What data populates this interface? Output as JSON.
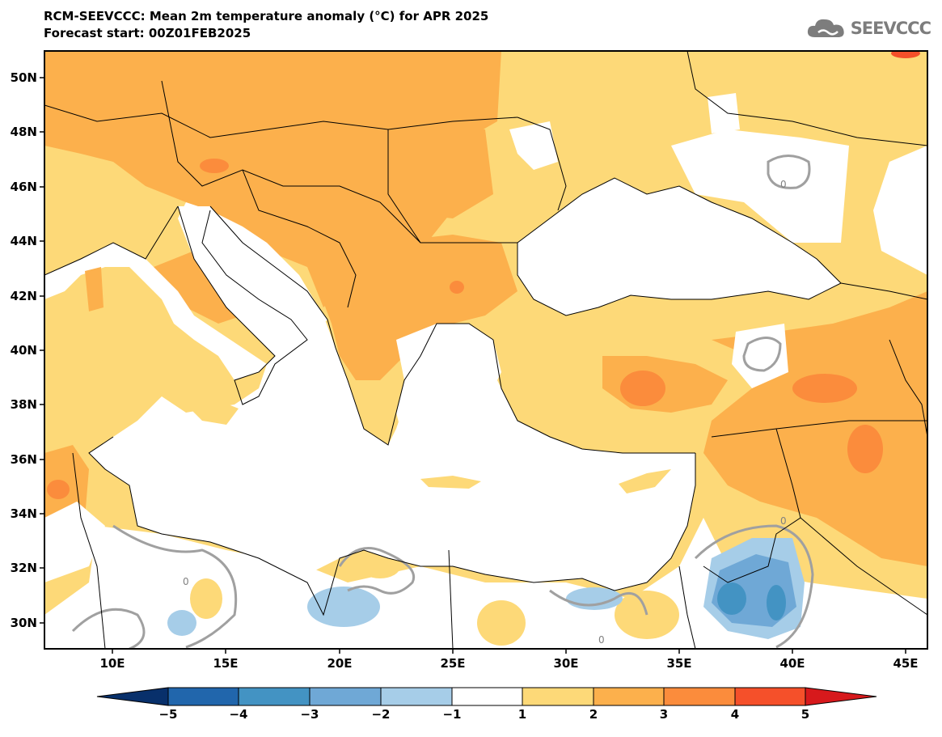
{
  "header": {
    "title": "RCM-SEEVCCC: Mean 2m temperature anomaly (°C) for APR 2025",
    "subtitle": "Forecast start: 00Z01FEB2025"
  },
  "logo": {
    "text": "SEEVCCC",
    "icon": "cloud-icon",
    "color": "#7d7d7d"
  },
  "map": {
    "lon_range": [
      7,
      46
    ],
    "lat_range": [
      29,
      51
    ],
    "lon_ticks": [
      "10E",
      "15E",
      "20E",
      "25E",
      "30E",
      "35E",
      "40E",
      "45E"
    ],
    "lat_ticks": [
      "50N",
      "48N",
      "46N",
      "44N",
      "42N",
      "40N",
      "38N",
      "36N",
      "34N",
      "32N",
      "30N"
    ],
    "contour_label": "0"
  },
  "colorbar": {
    "labels": [
      "−5",
      "−4",
      "−3",
      "−2",
      "−1",
      "1",
      "2",
      "3",
      "4",
      "5"
    ],
    "colors": [
      "#08306b",
      "#2166ac",
      "#4393c3",
      "#6fa8d6",
      "#a6cde8",
      "#ffffff",
      "#fdd978",
      "#fcb04c",
      "#fb8c3c",
      "#f5502a",
      "#d7191c"
    ]
  }
}
